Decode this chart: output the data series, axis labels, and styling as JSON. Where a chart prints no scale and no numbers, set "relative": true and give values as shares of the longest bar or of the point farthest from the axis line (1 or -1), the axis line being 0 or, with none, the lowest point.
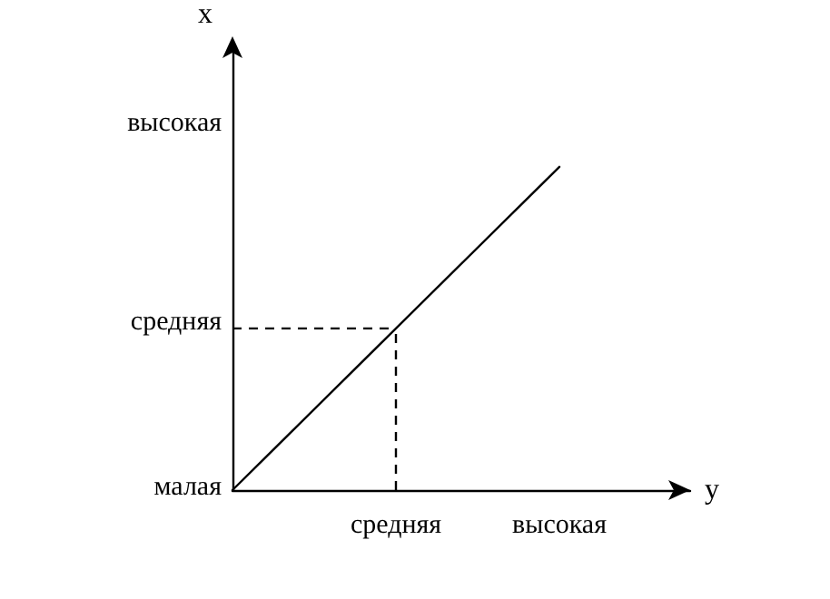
{
  "chart_data": {
    "type": "line",
    "relative": true,
    "xlabel": "у",
    "ylabel": "х",
    "marker": "none",
    "categories": [
      null,
      "средняя",
      "высокая"
    ],
    "series": [
      {
        "color": "#000000",
        "line_style": "solid",
        "values": [
          0,
          0.5,
          1
        ]
      }
    ],
    "ref_lines": [
      {
        "axis": "y",
        "value": 0.5,
        "color": "#000000",
        "line_style": "dashed"
      },
      {
        "axis": "x",
        "value": "средняя",
        "color": "#000000",
        "line_style": "dashed"
      }
    ],
    "annotations": [
      "малая",
      "средняя",
      "высокая"
    ]
  }
}
